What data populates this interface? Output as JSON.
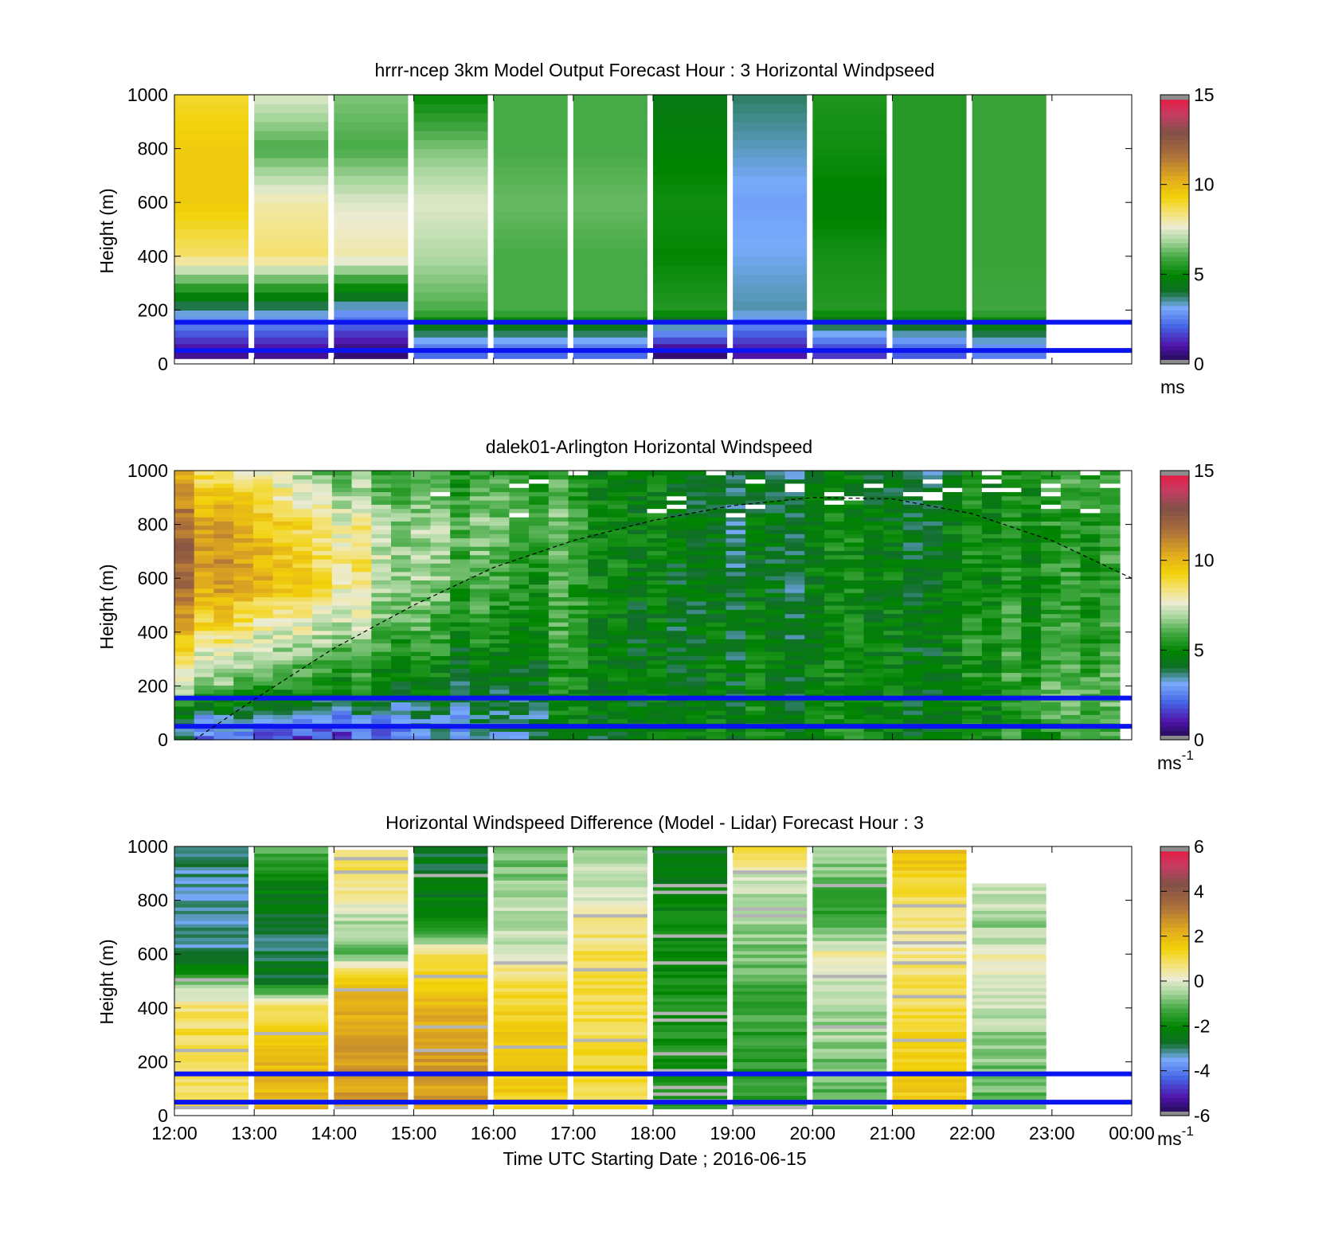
{
  "chart_data": [
    {
      "type": "heatmap",
      "title": "hrrr-ncep 3km Model Output   Forecast Hour : 3 Horizontal Windpseed",
      "ylabel": "Height (m)",
      "xlabel": "",
      "ylim": [
        0,
        1000
      ],
      "yticks": [
        0,
        200,
        400,
        600,
        800,
        1000
      ],
      "x_range_hours": [
        12,
        24
      ],
      "colorbar": {
        "min": 0,
        "max": 15,
        "ticks": [
          0,
          5,
          10,
          15
        ],
        "unit": "ms",
        "unit_sup": ""
      },
      "reference_lines_m": [
        50,
        155
      ],
      "columns": [
        {
          "x": 12,
          "cells": [
            [
              50,
              0.8
            ],
            [
              200,
              3.5
            ],
            [
              400,
              8.5
            ],
            [
              600,
              9.5
            ],
            [
              800,
              9.5
            ],
            [
              1000,
              9
            ]
          ]
        },
        {
          "x": 13,
          "cells": [
            [
              50,
              0.8
            ],
            [
              200,
              3.5
            ],
            [
              400,
              8.5
            ],
            [
              600,
              8
            ],
            [
              800,
              6
            ],
            [
              1000,
              7.5
            ]
          ]
        },
        {
          "x": 14,
          "cells": [
            [
              50,
              0.5
            ],
            [
              200,
              3
            ],
            [
              400,
              8
            ],
            [
              600,
              7.5
            ],
            [
              800,
              6
            ],
            [
              1000,
              6.5
            ]
          ]
        },
        {
          "x": 15,
          "cells": [
            [
              50,
              2.2
            ],
            [
              200,
              6
            ],
            [
              400,
              7
            ],
            [
              600,
              7.5
            ],
            [
              800,
              6.5
            ],
            [
              1000,
              5
            ]
          ]
        },
        {
          "x": 16,
          "cells": [
            [
              50,
              2.2
            ],
            [
              200,
              6
            ],
            [
              400,
              6
            ],
            [
              600,
              6.3
            ],
            [
              800,
              6
            ],
            [
              1000,
              6
            ]
          ]
        },
        {
          "x": 17,
          "cells": [
            [
              50,
              2.2
            ],
            [
              200,
              6
            ],
            [
              400,
              6
            ],
            [
              600,
              6.3
            ],
            [
              800,
              6
            ],
            [
              1000,
              6
            ]
          ]
        },
        {
          "x": 18,
          "cells": [
            [
              50,
              0.5
            ],
            [
              200,
              5.5
            ],
            [
              400,
              5
            ],
            [
              600,
              5.2
            ],
            [
              800,
              4.8
            ],
            [
              1000,
              4.5
            ]
          ]
        },
        {
          "x": 19,
          "cells": [
            [
              50,
              1
            ],
            [
              200,
              3.5
            ],
            [
              400,
              3.2
            ],
            [
              600,
              3
            ],
            [
              800,
              3.4
            ],
            [
              1000,
              3.8
            ]
          ]
        },
        {
          "x": 20,
          "cells": [
            [
              50,
              1.5
            ],
            [
              200,
              5.5
            ],
            [
              400,
              5.3
            ],
            [
              600,
              4.8
            ],
            [
              800,
              5.2
            ],
            [
              1000,
              5.4
            ]
          ]
        },
        {
          "x": 21,
          "cells": [
            [
              50,
              2
            ],
            [
              200,
              5.5
            ],
            [
              400,
              5.5
            ],
            [
              600,
              5.5
            ],
            [
              800,
              5.5
            ],
            [
              1000,
              5.5
            ]
          ]
        },
        {
          "x": 22,
          "cells": [
            [
              50,
              2.5
            ],
            [
              200,
              5.9
            ],
            [
              400,
              5.8
            ],
            [
              600,
              5.8
            ],
            [
              800,
              5.8
            ],
            [
              1000,
              5.8
            ]
          ]
        }
      ]
    },
    {
      "type": "heatmap",
      "title": "dalek01-Arlington  Horizontal Windspeed",
      "ylabel": "Height (m)",
      "xlabel": "",
      "ylim": [
        0,
        1000
      ],
      "yticks": [
        0,
        200,
        400,
        600,
        800,
        1000
      ],
      "x_range_hours": [
        12,
        24
      ],
      "colorbar": {
        "min": 0,
        "max": 15,
        "ticks": [
          0,
          5,
          10,
          15
        ],
        "unit": "ms",
        "unit_sup": "-1"
      },
      "reference_lines_m": [
        50,
        155
      ],
      "dashed_curve": {
        "x_hours": [
          12.25,
          13,
          14,
          15,
          16,
          17,
          18,
          19,
          20,
          21,
          22,
          23,
          24
        ],
        "y_m": [
          0,
          150,
          340,
          500,
          640,
          740,
          815,
          870,
          900,
          895,
          840,
          740,
          600
        ]
      },
      "time_keyframes_hours": [
        12,
        13,
        14,
        15,
        16,
        17,
        18,
        19,
        20,
        21,
        22,
        23,
        24
      ],
      "profile_heights_m": [
        0,
        100,
        200,
        400,
        600,
        800,
        1000
      ],
      "profiles": [
        [
          3,
          4,
          7,
          9.5,
          11.5,
          11.5,
          9.5
        ],
        [
          2,
          4,
          6,
          8,
          10.5,
          10,
          8
        ],
        [
          1.5,
          3,
          5,
          7,
          8.5,
          8,
          6
        ],
        [
          3,
          3.5,
          4.5,
          5.5,
          6.5,
          6.5,
          5.5
        ],
        [
          3.5,
          4,
          4.5,
          5.3,
          6,
          6.8,
          6
        ],
        [
          4.5,
          5,
          5,
          5.3,
          5.5,
          5.5,
          5.3
        ],
        [
          5,
          5,
          5,
          4.8,
          5,
          5.2,
          5
        ],
        [
          5,
          4.8,
          4.8,
          4.5,
          4.2,
          4,
          4.2
        ],
        [
          5,
          4.8,
          4.5,
          4.5,
          4.5,
          4.8,
          4
        ],
        [
          5,
          4.8,
          4.8,
          4.8,
          4.8,
          4.5,
          4
        ],
        [
          5.5,
          5,
          5.3,
          5.5,
          5.3,
          5.5,
          5
        ],
        [
          5.5,
          6.5,
          6.5,
          6,
          5.8,
          5.8,
          6
        ],
        [
          5.5,
          6,
          5.8,
          5.5,
          5.5,
          5.5,
          6
        ]
      ]
    },
    {
      "type": "heatmap",
      "title": "Horizontal Windspeed Difference (Model - Lidar) Forecast Hour : 3",
      "ylabel": "Height (m)",
      "xlabel": "Time UTC  Starting Date ; 2016-06-15",
      "ylim": [
        0,
        1000
      ],
      "yticks": [
        0,
        200,
        400,
        600,
        800,
        1000
      ],
      "x_range_hours": [
        12,
        24
      ],
      "xticklabels": [
        "12:00",
        "13:00",
        "14:00",
        "15:00",
        "16:00",
        "17:00",
        "18:00",
        "19:00",
        "20:00",
        "21:00",
        "22:00",
        "23:00",
        "00:00"
      ],
      "colorbar": {
        "min": -6,
        "max": 6,
        "ticks": [
          -6,
          -4,
          -2,
          0,
          2,
          4,
          6
        ],
        "unit": "ms",
        "unit_sup": "-1"
      },
      "reference_lines_m": [
        50,
        155
      ],
      "profile_heights_m": [
        0,
        100,
        200,
        300,
        400,
        500,
        600,
        700,
        800,
        900,
        1000
      ],
      "columns": [
        {
          "x": 12,
          "top": 1000,
          "values": [
            0.8,
            1,
            1,
            1,
            0.8,
            -1,
            -3,
            -3.2,
            -3.3,
            -3.2,
            -2.8
          ]
        },
        {
          "x": 13,
          "top": 1000,
          "values": [
            2,
            2,
            2,
            1.5,
            1,
            -2.5,
            -2.8,
            -2.8,
            -2.5,
            -2,
            -1
          ]
        },
        {
          "x": 14,
          "top": 990,
          "values": [
            2.5,
            2.5,
            2.5,
            2.3,
            2,
            1.8,
            -1,
            -0.5,
            0.3,
            0.8,
            1
          ]
        },
        {
          "x": 15,
          "top": 1000,
          "values": [
            2.5,
            2.5,
            2.5,
            2.3,
            2,
            1.5,
            1,
            -2,
            -2.3,
            -2.5,
            -2.8
          ]
        },
        {
          "x": 16,
          "top": 1000,
          "values": [
            1.5,
            1.5,
            1.5,
            1.5,
            1.3,
            1.2,
            -0.3,
            -0.2,
            -0.3,
            -0.8,
            -1
          ]
        },
        {
          "x": 17,
          "top": 1000,
          "values": [
            1.2,
            1.2,
            1.2,
            1,
            1,
            1,
            1,
            0.5,
            0,
            -0.3,
            -0.5
          ]
        },
        {
          "x": 18,
          "top": 1000,
          "values": [
            -1.8,
            -1.8,
            -1.8,
            -1.8,
            -1.6,
            -1.8,
            -2,
            -2,
            -2.2,
            -2.2,
            -2.5
          ]
        },
        {
          "x": 19,
          "top": 1000,
          "values": [
            -1.5,
            -1.5,
            -1.6,
            -1.5,
            -1.3,
            -1.2,
            -0.8,
            -0.6,
            -0.5,
            0,
            1
          ]
        },
        {
          "x": 20,
          "top": 1000,
          "values": [
            -1.2,
            -1,
            -0.8,
            -0.6,
            -0.5,
            0,
            0.5,
            -1.2,
            -1.5,
            -0.8,
            -0.5
          ]
        },
        {
          "x": 21,
          "top": 990,
          "values": [
            1.5,
            1.5,
            1.5,
            1.2,
            1,
            0.8,
            0.5,
            0.5,
            1,
            1.5,
            1.8
          ]
        },
        {
          "x": 22,
          "top": 860,
          "values": [
            -1,
            -1,
            -0.8,
            -0.6,
            -0.3,
            0,
            0.3,
            -0.6,
            -0.2,
            -0.3,
            -0.3
          ]
        }
      ]
    }
  ]
}
